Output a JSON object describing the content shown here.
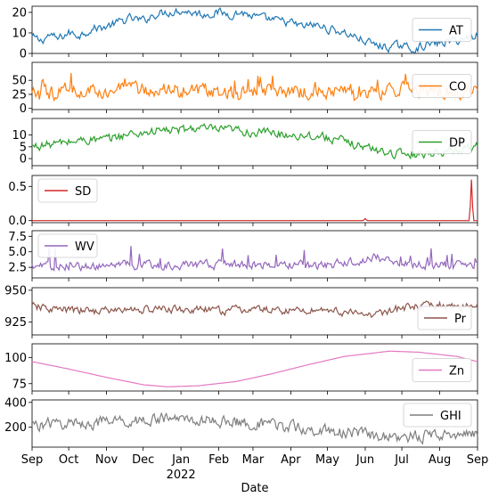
{
  "chart_data": {
    "type": "line",
    "xlabel": "Date",
    "x_start": "2021-09-01",
    "x_end": "2022-09-01",
    "month_ticks": [
      {
        "date": "2021-09-01",
        "label": "Sep",
        "sub": ""
      },
      {
        "date": "2021-10-01",
        "label": "Oct",
        "sub": ""
      },
      {
        "date": "2021-11-01",
        "label": "Nov",
        "sub": ""
      },
      {
        "date": "2021-12-01",
        "label": "Dec",
        "sub": ""
      },
      {
        "date": "2022-01-01",
        "label": "Jan",
        "sub": "2022"
      },
      {
        "date": "2022-02-01",
        "label": "Feb",
        "sub": ""
      },
      {
        "date": "2022-03-01",
        "label": "Mar",
        "sub": ""
      },
      {
        "date": "2022-04-01",
        "label": "Apr",
        "sub": ""
      },
      {
        "date": "2022-05-01",
        "label": "May",
        "sub": ""
      },
      {
        "date": "2022-06-01",
        "label": "Jun",
        "sub": ""
      },
      {
        "date": "2022-07-01",
        "label": "Jul",
        "sub": ""
      },
      {
        "date": "2022-08-01",
        "label": "Aug",
        "sub": ""
      },
      {
        "date": "2022-09-01",
        "label": "Sep",
        "sub": ""
      }
    ],
    "panels": [
      {
        "name": "AT",
        "color": "#1f77b4",
        "ylim": [
          0,
          23
        ],
        "yticks": [
          0,
          10,
          20
        ],
        "legend": "right",
        "samples": [
          [
            "2021-09-01",
            8
          ],
          [
            "2021-09-08",
            6
          ],
          [
            "2021-09-15",
            9
          ],
          [
            "2021-09-22",
            7
          ],
          [
            "2021-10-01",
            10
          ],
          [
            "2021-10-10",
            9
          ],
          [
            "2021-10-20",
            12
          ],
          [
            "2021-11-01",
            13
          ],
          [
            "2021-11-10",
            15
          ],
          [
            "2021-11-20",
            17
          ],
          [
            "2021-12-01",
            16
          ],
          [
            "2021-12-10",
            19
          ],
          [
            "2021-12-20",
            20
          ],
          [
            "2022-01-01",
            21
          ],
          [
            "2022-01-10",
            20
          ],
          [
            "2022-01-20",
            19
          ],
          [
            "2022-02-01",
            20
          ],
          [
            "2022-02-10",
            19
          ],
          [
            "2022-02-20",
            20
          ],
          [
            "2022-03-01",
            18
          ],
          [
            "2022-03-10",
            17
          ],
          [
            "2022-03-20",
            16
          ],
          [
            "2022-04-01",
            15
          ],
          [
            "2022-04-10",
            13
          ],
          [
            "2022-04-20",
            14
          ],
          [
            "2022-05-01",
            12
          ],
          [
            "2022-05-10",
            11
          ],
          [
            "2022-05-20",
            9
          ],
          [
            "2022-06-01",
            6
          ],
          [
            "2022-06-10",
            4
          ],
          [
            "2022-06-20",
            3
          ],
          [
            "2022-07-01",
            4
          ],
          [
            "2022-07-10",
            2
          ],
          [
            "2022-07-20",
            4
          ],
          [
            "2022-08-01",
            5
          ],
          [
            "2022-08-10",
            6
          ],
          [
            "2022-08-20",
            7
          ],
          [
            "2022-09-01",
            9
          ]
        ]
      },
      {
        "name": "CO",
        "color": "#ff7f0e",
        "ylim": [
          -2,
          82
        ],
        "yticks": [
          0,
          25,
          50
        ],
        "legend": "right",
        "samples": [
          [
            "2021-09-01",
            25
          ],
          [
            "2021-10-01",
            30
          ],
          [
            "2021-11-01",
            32
          ],
          [
            "2021-12-01",
            33
          ],
          [
            "2022-01-01",
            32
          ],
          [
            "2022-02-01",
            30
          ],
          [
            "2022-03-01",
            30
          ],
          [
            "2022-04-01",
            30
          ],
          [
            "2022-05-01",
            30
          ],
          [
            "2022-06-01",
            28
          ],
          [
            "2022-07-01",
            32
          ],
          [
            "2022-08-01",
            30
          ],
          [
            "2022-09-01",
            30
          ]
        ]
      },
      {
        "name": "DP",
        "color": "#2ca02c",
        "ylim": [
          -3,
          17
        ],
        "yticks": [
          0,
          5,
          10
        ],
        "legend": "right",
        "samples": [
          [
            "2021-09-01",
            5
          ],
          [
            "2021-09-15",
            6
          ],
          [
            "2021-10-01",
            7
          ],
          [
            "2021-10-15",
            8
          ],
          [
            "2021-11-01",
            8
          ],
          [
            "2021-11-15",
            10
          ],
          [
            "2021-12-01",
            11
          ],
          [
            "2021-12-15",
            12
          ],
          [
            "2022-01-01",
            12
          ],
          [
            "2022-01-15",
            13
          ],
          [
            "2022-02-01",
            12
          ],
          [
            "2022-02-15",
            12
          ],
          [
            "2022-03-01",
            11
          ],
          [
            "2022-03-15",
            11
          ],
          [
            "2022-04-01",
            10
          ],
          [
            "2022-04-15",
            10
          ],
          [
            "2022-05-01",
            9
          ],
          [
            "2022-05-15",
            7
          ],
          [
            "2022-06-01",
            5
          ],
          [
            "2022-06-15",
            3
          ],
          [
            "2022-07-01",
            2
          ],
          [
            "2022-07-15",
            2
          ],
          [
            "2022-08-01",
            3
          ],
          [
            "2022-08-15",
            4
          ],
          [
            "2022-09-01",
            5
          ]
        ]
      },
      {
        "name": "SD",
        "color": "#d62728",
        "ylim": [
          -0.03,
          0.66
        ],
        "yticks": [
          0.0,
          0.5
        ],
        "legend": "left",
        "samples": [
          [
            "2021-09-01",
            0.0
          ],
          [
            "2022-09-01",
            0.0
          ]
        ],
        "spikes": [
          [
            "2022-06-01",
            0.03
          ],
          [
            "2022-08-27",
            0.6
          ]
        ]
      },
      {
        "name": "WV",
        "color": "#9467bd",
        "ylim": [
          0.8,
          8.4
        ],
        "yticks": [
          2.5,
          5.0,
          7.5
        ],
        "legend": "left",
        "samples": [
          [
            "2021-09-01",
            2.6
          ],
          [
            "2021-11-01",
            2.8
          ],
          [
            "2022-01-01",
            2.8
          ],
          [
            "2022-03-01",
            3.0
          ],
          [
            "2022-05-01",
            2.8
          ],
          [
            "2022-06-10",
            4.0
          ],
          [
            "2022-07-01",
            3.0
          ],
          [
            "2022-09-01",
            2.8
          ]
        ]
      },
      {
        "name": "Pr",
        "color": "#8c564b",
        "ylim": [
          915,
          952
        ],
        "yticks": [
          925,
          950
        ],
        "legend": "right",
        "samples": [
          [
            "2021-09-01",
            937
          ],
          [
            "2021-10-01",
            934
          ],
          [
            "2021-11-01",
            934
          ],
          [
            "2021-12-01",
            935
          ],
          [
            "2022-01-01",
            935
          ],
          [
            "2022-02-01",
            934
          ],
          [
            "2022-03-01",
            935
          ],
          [
            "2022-04-01",
            934
          ],
          [
            "2022-05-01",
            935
          ],
          [
            "2022-06-01",
            930
          ],
          [
            "2022-07-01",
            936
          ],
          [
            "2022-08-01",
            938
          ],
          [
            "2022-09-01",
            937
          ]
        ]
      },
      {
        "name": "Zn",
        "color": "#e377c2",
        "ylim": [
          68,
          113
        ],
        "yticks": [
          75,
          100
        ],
        "legend": "right",
        "samples": [
          [
            "2021-09-01",
            96
          ],
          [
            "2021-10-01",
            89
          ],
          [
            "2021-11-01",
            81
          ],
          [
            "2021-12-01",
            74
          ],
          [
            "2021-12-21",
            72
          ],
          [
            "2022-01-15",
            73
          ],
          [
            "2022-02-15",
            77
          ],
          [
            "2022-03-15",
            84
          ],
          [
            "2022-04-15",
            93
          ],
          [
            "2022-05-15",
            101
          ],
          [
            "2022-06-21",
            106
          ],
          [
            "2022-07-15",
            105
          ],
          [
            "2022-08-15",
            101
          ],
          [
            "2022-09-01",
            96
          ]
        ]
      },
      {
        "name": "GHI",
        "color": "#7f7f7f",
        "ylim": [
          40,
          420
        ],
        "yticks": [
          200,
          400
        ],
        "legend": "right",
        "samples": [
          [
            "2021-09-01",
            220
          ],
          [
            "2021-10-01",
            230
          ],
          [
            "2021-11-01",
            240
          ],
          [
            "2021-12-01",
            260
          ],
          [
            "2022-01-01",
            270
          ],
          [
            "2022-02-01",
            250
          ],
          [
            "2022-03-01",
            230
          ],
          [
            "2022-04-01",
            200
          ],
          [
            "2022-05-01",
            170
          ],
          [
            "2022-06-01",
            140
          ],
          [
            "2022-07-01",
            120
          ],
          [
            "2022-08-01",
            140
          ],
          [
            "2022-09-01",
            160
          ]
        ]
      }
    ]
  }
}
